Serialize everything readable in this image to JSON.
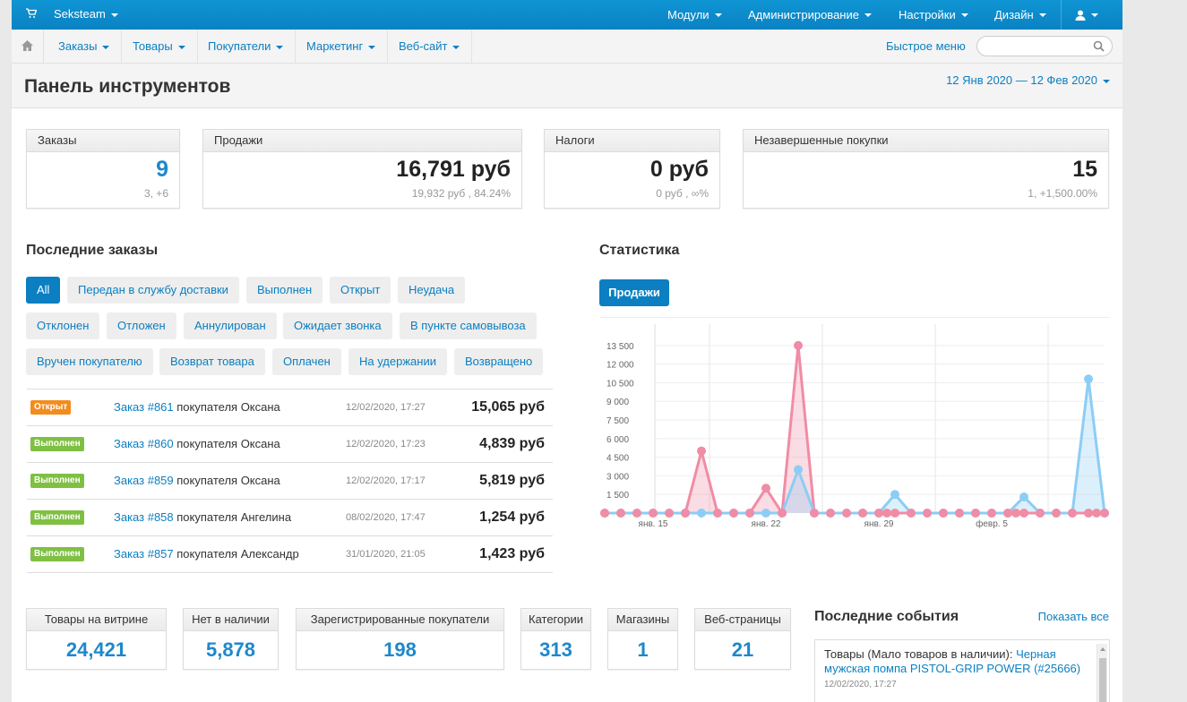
{
  "topbar": {
    "store_name": "Seksteam",
    "menus": [
      "Модули",
      "Администрирование",
      "Настройки",
      "Дизайн"
    ]
  },
  "subnav": {
    "items": [
      "Заказы",
      "Товары",
      "Покупатели",
      "Маркетинг",
      "Веб-сайт"
    ],
    "quick_menu": "Быстрое меню",
    "search_placeholder": ""
  },
  "page": {
    "title": "Панель инструментов",
    "date_range": "12 Янв 2020 — 12 Фев 2020"
  },
  "kpis": [
    {
      "label": "Заказы",
      "value": "9",
      "sub": "3, +6"
    },
    {
      "label": "Продажи",
      "value": "16,791 руб",
      "sub": "19,932 руб , 84.24%"
    },
    {
      "label": "Налоги",
      "value": "0 руб",
      "sub": "0 руб , ∞%"
    },
    {
      "label": "Незавершенные покупки",
      "value": "15",
      "sub": "1, +1,500.00%"
    }
  ],
  "recent_orders": {
    "title": "Последние заказы",
    "filters": [
      "All",
      "Передан в службу доставки",
      "Выполнен",
      "Открыт",
      "Неудача",
      "Отклонен",
      "Отложен",
      "Аннулирован",
      "Ожидает звонка",
      "В пункте самовывоза",
      "Вручен покупателю",
      "Возврат товара",
      "Оплачен",
      "На удержании",
      "Возвращено"
    ],
    "rows": [
      {
        "status": "Открыт",
        "order": "Заказ #861",
        "customer": "покупателя Оксана",
        "date": "12/02/2020, 17:27",
        "total": "15,065 руб"
      },
      {
        "status": "Выполнен",
        "order": "Заказ #860",
        "customer": "покупателя Оксана",
        "date": "12/02/2020, 17:23",
        "total": "4,839 руб"
      },
      {
        "status": "Выполнен",
        "order": "Заказ #859",
        "customer": "покупателя Оксана",
        "date": "12/02/2020, 17:17",
        "total": "5,819 руб"
      },
      {
        "status": "Выполнен",
        "order": "Заказ #858",
        "customer": "покупателя Ангелина",
        "date": "08/02/2020, 17:47",
        "total": "1,254 руб"
      },
      {
        "status": "Выполнен",
        "order": "Заказ #857",
        "customer": "покупателя Александр",
        "date": "31/01/2020, 21:05",
        "total": "1,423 руб"
      }
    ]
  },
  "statistics": {
    "title": "Статистика",
    "tab": "Продажи"
  },
  "chart_data": {
    "type": "area",
    "title": "",
    "xlabel": "",
    "ylabel": "",
    "ylim": [
      0,
      14500
    ],
    "yticks": [
      "1 500",
      "3 000",
      "4 500",
      "6 000",
      "7 500",
      "9 000",
      "10 500",
      "12 000",
      "13 500"
    ],
    "xticks": [
      "янв. 15",
      "янв. 22",
      "янв. 29",
      "февр. 5"
    ],
    "x": [
      12,
      13,
      14,
      15,
      16,
      17,
      18,
      19,
      20,
      21,
      22,
      23,
      24,
      25,
      26,
      27,
      28,
      29,
      30,
      31,
      32,
      33,
      34,
      35,
      36,
      37,
      38,
      39,
      40,
      41,
      42,
      43
    ],
    "series": [
      {
        "color": "#f08ca5",
        "values": [
          0,
          0,
          0,
          0,
          0,
          0,
          5000,
          0,
          0,
          0,
          2000,
          0,
          13500,
          0,
          0,
          0,
          0,
          0,
          0,
          0,
          0,
          0,
          0,
          0,
          0,
          0,
          0,
          0,
          0,
          0,
          0,
          0
        ]
      },
      {
        "color": "#8ccdf5",
        "values": [
          0,
          0,
          0,
          0,
          0,
          0,
          0,
          0,
          0,
          0,
          0,
          0,
          3500,
          0,
          0,
          0,
          0,
          0,
          1500,
          0,
          0,
          0,
          0,
          0,
          0,
          0,
          1300,
          0,
          0,
          0,
          10800,
          0
        ]
      }
    ],
    "colors": {
      "pink": "#f08ca5",
      "blue": "#8ccdf5"
    }
  },
  "stats": [
    {
      "label": "Товары на витрине",
      "value": "24,421"
    },
    {
      "label": "Нет в наличии",
      "value": "5,878"
    },
    {
      "label": "Зарегистрированные покупатели",
      "value": "198"
    },
    {
      "label": "Категории",
      "value": "313"
    },
    {
      "label": "Магазины",
      "value": "1"
    },
    {
      "label": "Веб-страницы",
      "value": "21"
    }
  ],
  "events": {
    "title": "Последние события",
    "show_all": "Показать все",
    "items": [
      {
        "prefix": "Товары (Мало товаров в наличии):",
        "link": "Черная мужская помпа PISTOL-GRIP POWER (#25666)",
        "date": "12/02/2020, 17:27"
      }
    ]
  },
  "colors": {
    "accent": "#0b7fc1",
    "topbar": "#0f95d4",
    "open_badge": "#f28c1e",
    "done_badge": "#7fc043"
  }
}
